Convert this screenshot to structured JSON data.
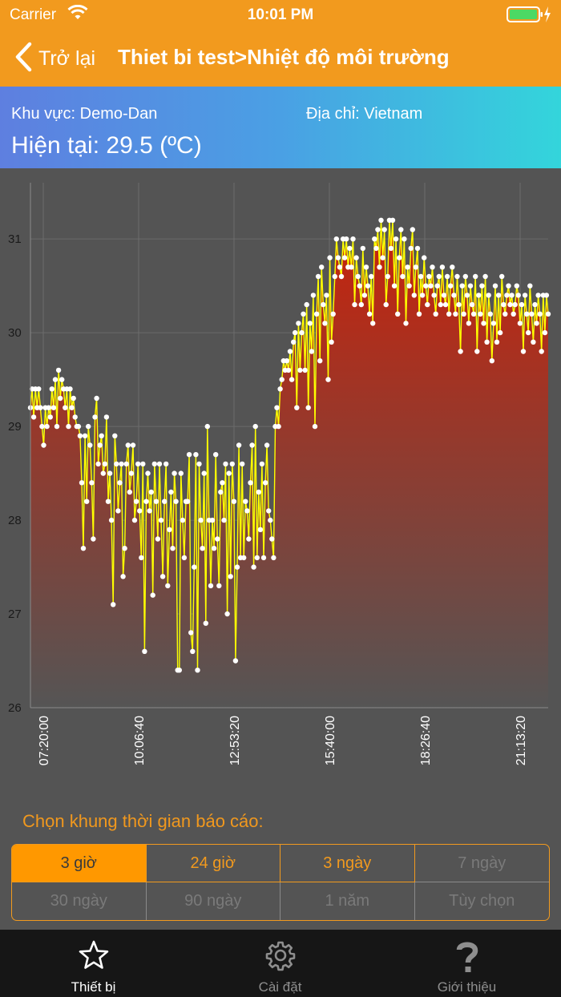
{
  "status_bar": {
    "carrier": "Carrier",
    "time": "10:01 PM"
  },
  "nav": {
    "back_label": "Trở lại",
    "title": "Thiet bi test>Nhiệt độ môi trường"
  },
  "header": {
    "area": "Khu vực: Demo-Dan",
    "address": "Địa chỉ: Vietnam",
    "current": "Hiện tại: 29.5 (ºC)"
  },
  "colors": {
    "accent": "#F29A1E",
    "line": "#FFFF00",
    "point": "#FFFFFF",
    "fill_top": "#C8230C",
    "fill_bottom": "#555555"
  },
  "chart_data": {
    "type": "area",
    "xlabel": "",
    "ylabel": "",
    "ylim": [
      26,
      31.6
    ],
    "yticks": [
      "26",
      "27",
      "28",
      "29",
      "30",
      "31"
    ],
    "xticks": [
      "07:20:00",
      "10:06:40",
      "12:53:20",
      "15:40:00",
      "18:26:40",
      "21:13:20"
    ],
    "grid": true,
    "legend": "none",
    "series": [
      {
        "values": [
          29.2,
          29.4,
          29.1,
          29.4,
          29.2,
          29.4,
          29.2,
          29.0,
          28.8,
          29.2,
          29.0,
          29.2,
          29.1,
          29.4,
          29.2,
          29.5,
          29.0,
          29.6,
          29.3,
          29.5,
          29.4,
          29.2,
          29.4,
          29.0,
          29.4,
          29.2,
          29.3,
          29.1,
          29.0,
          29.0,
          28.9,
          28.4,
          27.7,
          28.9,
          28.2,
          29.0,
          28.8,
          28.4,
          27.8,
          29.1,
          29.3,
          28.6,
          28.8,
          28.9,
          28.5,
          28.6,
          29.1,
          28.2,
          28.5,
          28.0,
          27.1,
          28.9,
          28.6,
          28.1,
          28.4,
          28.6,
          27.4,
          27.7,
          28.6,
          28.8,
          28.3,
          28.5,
          28.8,
          28.0,
          28.2,
          28.6,
          28.1,
          27.6,
          28.6,
          26.6,
          28.2,
          28.5,
          28.1,
          28.3,
          27.2,
          28.6,
          28.2,
          27.8,
          28.6,
          28.0,
          27.4,
          28.2,
          28.6,
          27.3,
          27.9,
          28.3,
          27.7,
          28.5,
          28.2,
          26.4,
          26.4,
          28.5,
          28.0,
          27.6,
          28.2,
          28.2,
          28.7,
          26.8,
          26.6,
          27.5,
          28.7,
          26.4,
          28.6,
          28.0,
          27.7,
          28.5,
          26.9,
          29.0,
          28.0,
          27.3,
          28.0,
          27.7,
          28.7,
          27.8,
          27.3,
          28.3,
          28.4,
          28.0,
          28.6,
          27.0,
          28.5,
          27.4,
          28.6,
          28.2,
          26.5,
          27.5,
          28.8,
          27.6,
          28.6,
          27.6,
          28.2,
          28.1,
          27.8,
          28.4,
          28.8,
          27.5,
          29.0,
          27.6,
          28.3,
          27.9,
          28.6,
          27.6,
          28.4,
          28.8,
          28.1,
          28.0,
          27.8,
          27.6,
          29.0,
          29.2,
          29.0,
          29.4,
          29.5,
          29.7,
          29.6,
          29.7,
          29.6,
          29.8,
          29.5,
          29.9,
          30.0,
          29.2,
          30.1,
          29.6,
          30.0,
          30.2,
          29.6,
          30.3,
          29.2,
          30.1,
          29.8,
          30.4,
          29.0,
          30.2,
          30.6,
          29.7,
          30.7,
          30.3,
          30.1,
          30.4,
          29.5,
          30.8,
          29.9,
          30.2,
          30.6,
          31.0,
          30.8,
          30.7,
          30.6,
          31.0,
          30.8,
          31.0,
          30.7,
          30.9,
          30.7,
          31.0,
          30.3,
          30.8,
          30.6,
          30.5,
          30.3,
          30.9,
          30.4,
          30.7,
          30.5,
          30.2,
          30.6,
          30.1,
          31.0,
          30.9,
          31.1,
          30.7,
          31.2,
          30.8,
          31.1,
          30.3,
          30.6,
          31.2,
          30.9,
          31.2,
          30.5,
          31.0,
          30.2,
          30.8,
          31.1,
          30.6,
          31.0,
          30.1,
          30.7,
          30.5,
          30.9,
          31.1,
          30.4,
          30.7,
          30.9,
          30.2,
          30.6,
          30.4,
          30.8,
          30.5,
          30.3,
          30.6,
          30.5,
          30.7,
          30.4,
          30.2,
          30.5,
          30.6,
          30.3,
          30.7,
          30.4,
          30.3,
          30.6,
          30.2,
          30.5,
          30.7,
          30.4,
          30.2,
          30.6,
          30.3,
          29.8,
          30.5,
          30.2,
          30.6,
          30.4,
          30.1,
          30.5,
          30.3,
          30.2,
          30.6,
          29.8,
          30.4,
          30.2,
          30.5,
          30.1,
          30.6,
          29.9,
          30.4,
          30.2,
          29.7,
          30.1,
          30.5,
          29.9,
          30.4,
          30.0,
          30.6,
          30.3,
          30.2,
          30.4,
          30.5,
          30.3,
          30.4,
          30.2,
          30.3,
          30.5,
          30.4,
          30.1,
          30.3,
          29.8,
          30.4,
          30.2,
          30.0,
          30.5,
          30.2,
          29.9,
          30.3,
          30.1,
          30.4,
          30.2,
          29.8,
          30.4,
          30.0,
          30.4,
          30.2
        ]
      }
    ]
  },
  "report": {
    "title": "Chọn khung thời gian báo cáo:",
    "ranges": [
      {
        "label": "3 giờ",
        "state": "selected"
      },
      {
        "label": "24 giờ",
        "state": "enabled"
      },
      {
        "label": "3 ngày",
        "state": "enabled"
      },
      {
        "label": "7 ngày",
        "state": "disabled"
      },
      {
        "label": "30 ngày",
        "state": "disabled"
      },
      {
        "label": "90 ngày",
        "state": "disabled"
      },
      {
        "label": "1 năm",
        "state": "disabled"
      },
      {
        "label": "Tùy chọn",
        "state": "disabled"
      }
    ]
  },
  "tabs": [
    {
      "label": "Thiết bị",
      "icon": "star-icon",
      "active": true
    },
    {
      "label": "Cài đặt",
      "icon": "gear-icon",
      "active": false
    },
    {
      "label": "Giới thiệu",
      "icon": "question-icon",
      "active": false
    }
  ]
}
